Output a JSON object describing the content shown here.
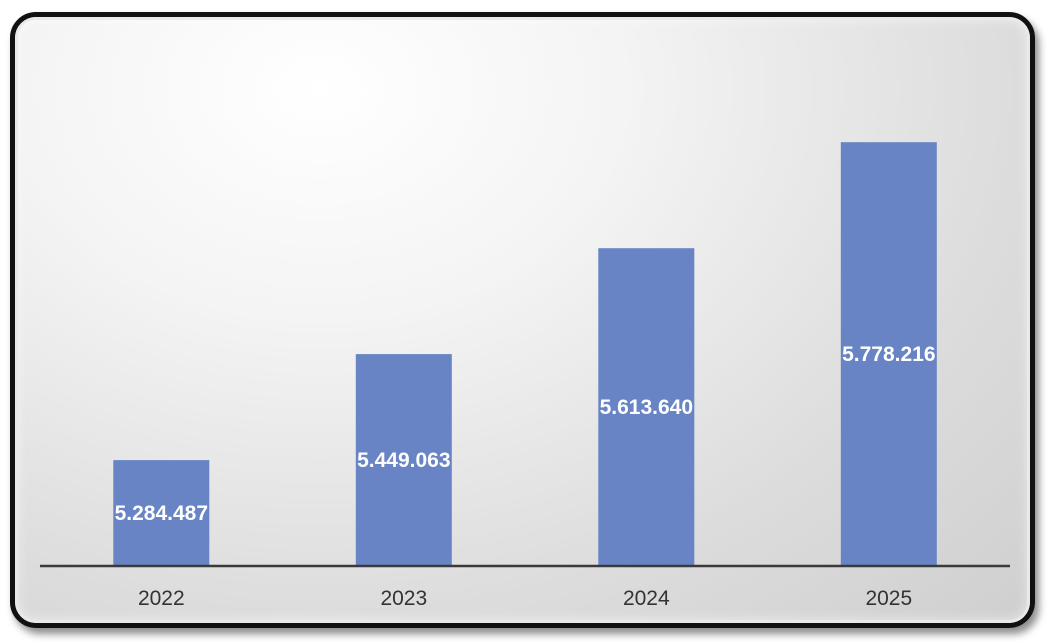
{
  "chart_data": {
    "type": "bar",
    "title": "",
    "xlabel": "",
    "ylabel": "",
    "categories": [
      "2022",
      "2023",
      "2024",
      "2025"
    ],
    "values": [
      5284487,
      5449063,
      5613640,
      5778216
    ],
    "value_labels": [
      "5.284.487",
      "5.449.063",
      "5.613.640",
      "5.778.216"
    ],
    "ylim": [
      5120000,
      5850000
    ],
    "grid": false,
    "legend": "none",
    "colors": {
      "bar": "#6884c4",
      "value_label": "#ffffff",
      "axis": "#3a3a3a",
      "frame_border": "#111111"
    }
  }
}
